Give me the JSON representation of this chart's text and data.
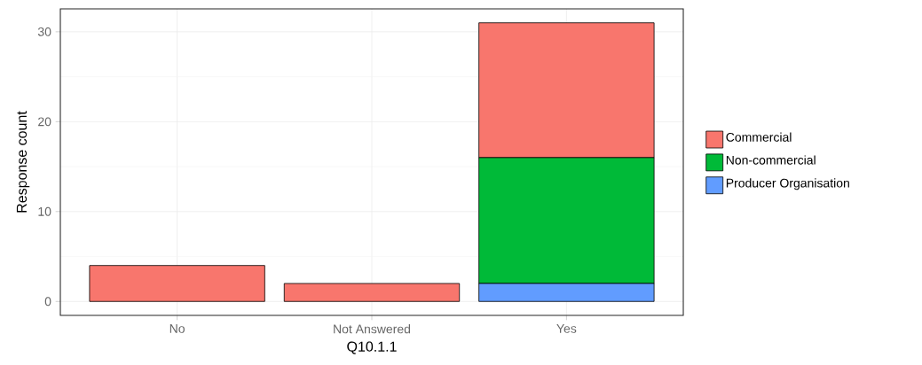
{
  "chart_data": {
    "type": "bar",
    "stacked": true,
    "xlabel": "Q10.1.1",
    "ylabel": "Response count",
    "categories": [
      "No",
      "Not Answered",
      "Yes"
    ],
    "series": [
      {
        "name": "Producer Organisation",
        "color": "#619cff",
        "values": [
          null,
          null,
          2
        ]
      },
      {
        "name": "Non-commercial",
        "color": "#00ba38",
        "values": [
          null,
          null,
          14
        ]
      },
      {
        "name": "Commercial",
        "color": "#f8766d",
        "values": [
          4,
          2,
          15
        ]
      }
    ],
    "ylim": [
      -1.55,
      32.55
    ],
    "yticks": [
      0,
      10,
      20,
      30
    ],
    "grid": true,
    "legend": "right"
  }
}
